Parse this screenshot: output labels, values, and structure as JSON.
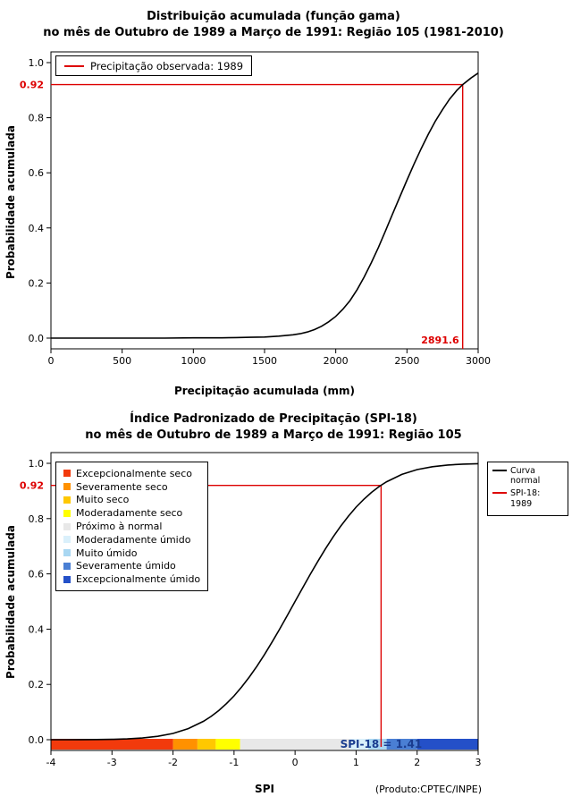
{
  "chart_data": [
    {
      "type": "line",
      "title": "Distribuição acumulada (função gama)",
      "subtitle": "no mês de Outubro de 1989 a Março de 1991: Região 105 (1981-2010)",
      "xlabel": "Precipitação acumulada (mm)",
      "ylabel": "Probabilidade acumulada",
      "xlim": [
        0,
        3000
      ],
      "ylim": [
        0,
        1
      ],
      "x_ticks": [
        0,
        500,
        1000,
        1500,
        2000,
        2500,
        3000
      ],
      "y_ticks": [
        0,
        0.2,
        0.4,
        0.6,
        0.8,
        1
      ],
      "grid": false,
      "legend_position": "top-left",
      "legend": [
        {
          "label": "Precipitação observada: 1989",
          "color": "#dd0000"
        }
      ],
      "series": [
        {
          "name": "Distribuição gama acumulada",
          "color": "#000000",
          "x": [
            0,
            200,
            400,
            600,
            800,
            1000,
            1100,
            1200,
            1300,
            1400,
            1500,
            1600,
            1700,
            1750,
            1800,
            1850,
            1900,
            1950,
            2000,
            2050,
            2100,
            2150,
            2200,
            2250,
            2300,
            2350,
            2400,
            2450,
            2500,
            2550,
            2600,
            2650,
            2700,
            2750,
            2800,
            2850,
            2891.6,
            2950,
            3000
          ],
          "y": [
            0,
            0,
            0,
            0,
            0,
            0.001,
            0.001,
            0.001,
            0.002,
            0.003,
            0.004,
            0.007,
            0.012,
            0.016,
            0.022,
            0.031,
            0.043,
            0.059,
            0.079,
            0.105,
            0.136,
            0.176,
            0.222,
            0.274,
            0.33,
            0.39,
            0.452,
            0.513,
            0.573,
            0.632,
            0.688,
            0.74,
            0.788,
            0.83,
            0.868,
            0.899,
            0.92,
            0.944,
            0.962
          ]
        }
      ],
      "reference": {
        "x": 2891.6,
        "y": 0.92,
        "color": "#dd0000",
        "y_label": "0.92",
        "x_label": "2891.6"
      }
    },
    {
      "type": "line",
      "title": "Índice Padronizado de Precipitação (SPI-18)",
      "subtitle": "no mês de Outubro de 1989 a Março de 1991: Região 105",
      "xlabel": "SPI",
      "ylabel": "Probabilidade acumulada",
      "credit": "(Produto:CPTEC/INPE)",
      "xlim": [
        -4,
        3
      ],
      "ylim": [
        0,
        1
      ],
      "x_ticks": [
        -4,
        -3,
        -2,
        -1,
        0,
        1,
        2,
        3
      ],
      "y_ticks": [
        0,
        0.2,
        0.4,
        0.6,
        0.8,
        1
      ],
      "grid": false,
      "legend_position": "top-left",
      "categories": [
        {
          "label": "Excepcionalmente seco",
          "color": "#f23a0c"
        },
        {
          "label": "Severamente seco",
          "color": "#ff9100"
        },
        {
          "label": "Muito seco",
          "color": "#ffc800"
        },
        {
          "label": "Moderadamente seco",
          "color": "#ffff00"
        },
        {
          "label": "Próximo à normal",
          "color": "#e8e8e8"
        },
        {
          "label": "Moderadamente úmido",
          "color": "#daf0fb"
        },
        {
          "label": "Muito úmido",
          "color": "#a9d7f2"
        },
        {
          "label": "Severamente úmido",
          "color": "#4a7fd4"
        },
        {
          "label": "Excepcionalmente úmido",
          "color": "#2450c8"
        }
      ],
      "curve_legend": [
        {
          "label": "Curva normal",
          "color": "#000000"
        },
        {
          "label": "SPI-18: 1989",
          "color": "#dd0000"
        }
      ],
      "colorbar": [
        {
          "label": "Excepcionalmente seco",
          "from": -4,
          "to": -2,
          "color": "#f23a0c"
        },
        {
          "label": "Severamente seco",
          "from": -2,
          "to": -1.6,
          "color": "#ff9100"
        },
        {
          "label": "Muito seco",
          "from": -1.6,
          "to": -1.3,
          "color": "#ffc800"
        },
        {
          "label": "Moderadamente seco",
          "from": -1.3,
          "to": -0.9,
          "color": "#ffff00"
        },
        {
          "label": "Próximo à normal",
          "from": -0.9,
          "to": 0.9,
          "color": "#e8e8e8"
        },
        {
          "label": "Moderadamente úmido",
          "from": 0.9,
          "to": 1.2,
          "color": "#daf0fb"
        },
        {
          "label": "Muito úmido",
          "from": 1.2,
          "to": 1.5,
          "color": "#a9d7f2"
        },
        {
          "label": "Severamente úmido",
          "from": 1.5,
          "to": 2,
          "color": "#4a7fd4"
        },
        {
          "label": "Excepcionalmente úmido",
          "from": 2,
          "to": 3,
          "color": "#2450c8"
        }
      ],
      "series": [
        {
          "name": "Curva normal",
          "color": "#000000",
          "x": [
            -4,
            -3.75,
            -3.5,
            -3.25,
            -3,
            -2.75,
            -2.5,
            -2.25,
            -2,
            -1.75,
            -1.5,
            -1.375,
            -1.25,
            -1.125,
            -1,
            -0.875,
            -0.75,
            -0.625,
            -0.5,
            -0.375,
            -0.25,
            -0.125,
            0,
            0.125,
            0.25,
            0.375,
            0.5,
            0.625,
            0.75,
            0.875,
            1,
            1.125,
            1.25,
            1.375,
            1.41,
            1.5,
            1.75,
            2,
            2.25,
            2.5,
            2.75,
            3
          ],
          "y": [
            0.0,
            0.0001,
            0.0002,
            0.0006,
            0.0013,
            0.003,
            0.0062,
            0.0122,
            0.0228,
            0.0401,
            0.0668,
            0.0846,
            0.1056,
            0.1303,
            0.1587,
            0.1908,
            0.2266,
            0.266,
            0.3085,
            0.3538,
            0.4013,
            0.4503,
            0.5,
            0.5497,
            0.5987,
            0.6462,
            0.6915,
            0.734,
            0.7734,
            0.8092,
            0.8413,
            0.8697,
            0.8944,
            0.9154,
            0.9207,
            0.9332,
            0.9599,
            0.9772,
            0.9878,
            0.9938,
            0.997,
            0.9987
          ]
        }
      ],
      "reference": {
        "x": 1.41,
        "y": 0.92,
        "color": "#dd0000",
        "y_label": "0.92"
      },
      "annotation": {
        "text": "SPI-18 = 1.41",
        "color": "#1a3c8f"
      }
    }
  ]
}
